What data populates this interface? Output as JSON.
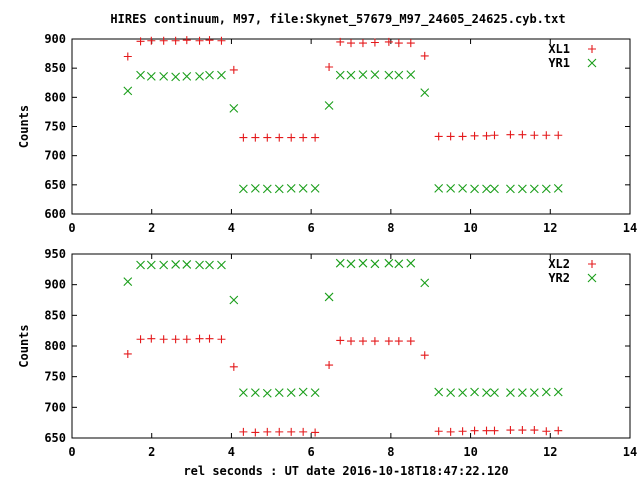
{
  "title": "HIRES continuum, M97, file:Skynet_57679_M97_24605_24625.cyb.txt",
  "xlabel": "rel seconds : UT date 2016-10-18T18:47:22.120",
  "chart_data": [
    {
      "type": "scatter",
      "ylabel": "Counts",
      "xlim": [
        0,
        14
      ],
      "ylim": [
        600,
        900
      ],
      "xticks": [
        "0",
        "2",
        "4",
        "6",
        "8",
        "10",
        "12",
        "14"
      ],
      "yticks": [
        "600",
        "650",
        "700",
        "750",
        "800",
        "850",
        "900"
      ],
      "legend": "top-right",
      "series": [
        {
          "name": "XL1",
          "marker": "plus",
          "color": "#e41a1c",
          "x": [
            1.4,
            1.72,
            1.99,
            2.3,
            2.6,
            2.88,
            3.2,
            3.45,
            3.75,
            4.06,
            4.3,
            4.6,
            4.9,
            5.2,
            5.5,
            5.8,
            6.1,
            6.45,
            6.73,
            7.0,
            7.3,
            7.6,
            7.95,
            8.2,
            8.5,
            8.85,
            9.2,
            9.5,
            9.8,
            10.1,
            10.4,
            10.6,
            11.0,
            11.3,
            11.6,
            11.9,
            12.2
          ],
          "y": [
            870,
            896,
            897,
            897,
            897,
            898,
            897,
            898,
            897,
            847,
            731,
            731,
            731,
            731,
            731,
            731,
            731,
            852,
            895,
            893,
            893,
            894,
            895,
            893,
            893,
            871,
            733,
            733,
            733,
            734,
            734,
            735,
            736,
            736,
            735,
            735,
            735
          ]
        },
        {
          "name": "YR1",
          "marker": "cross",
          "color": "#1a9e1a",
          "x": [
            1.4,
            1.72,
            1.99,
            2.3,
            2.6,
            2.88,
            3.2,
            3.45,
            3.75,
            4.06,
            4.3,
            4.6,
            4.9,
            5.2,
            5.5,
            5.8,
            6.1,
            6.45,
            6.73,
            7.0,
            7.3,
            7.6,
            7.95,
            8.2,
            8.5,
            8.85,
            9.2,
            9.5,
            9.8,
            10.1,
            10.4,
            10.6,
            11.0,
            11.3,
            11.6,
            11.9,
            12.2
          ],
          "y": [
            811,
            838,
            836,
            836,
            835,
            836,
            836,
            838,
            838,
            781,
            643,
            644,
            643,
            643,
            644,
            644,
            644,
            786,
            838,
            838,
            839,
            839,
            838,
            838,
            839,
            808,
            644,
            644,
            644,
            643,
            643,
            643,
            643,
            643,
            643,
            643,
            644
          ]
        }
      ]
    },
    {
      "type": "scatter",
      "ylabel": "Counts",
      "xlim": [
        0,
        14
      ],
      "ylim": [
        650,
        950
      ],
      "xticks": [
        "0",
        "2",
        "4",
        "6",
        "8",
        "10",
        "12",
        "14"
      ],
      "yticks": [
        "650",
        "700",
        "750",
        "800",
        "850",
        "900",
        "950"
      ],
      "legend": "top-right",
      "series": [
        {
          "name": "XL2",
          "marker": "plus",
          "color": "#e41a1c",
          "x": [
            1.4,
            1.72,
            1.99,
            2.3,
            2.6,
            2.88,
            3.2,
            3.45,
            3.75,
            4.06,
            4.3,
            4.6,
            4.9,
            5.2,
            5.5,
            5.8,
            6.1,
            6.45,
            6.73,
            7.0,
            7.3,
            7.6,
            7.95,
            8.2,
            8.5,
            8.85,
            9.2,
            9.5,
            9.8,
            10.1,
            10.4,
            10.6,
            11.0,
            11.3,
            11.6,
            11.9,
            12.2
          ],
          "y": [
            787,
            811,
            812,
            811,
            811,
            811,
            812,
            812,
            811,
            766,
            660,
            659,
            660,
            660,
            660,
            660,
            659,
            769,
            809,
            808,
            808,
            808,
            808,
            808,
            808,
            785,
            661,
            660,
            661,
            662,
            662,
            662,
            663,
            663,
            663,
            661,
            662
          ]
        },
        {
          "name": "YR2",
          "marker": "cross",
          "color": "#1a9e1a",
          "x": [
            1.4,
            1.72,
            1.99,
            2.3,
            2.6,
            2.88,
            3.2,
            3.45,
            3.75,
            4.06,
            4.3,
            4.6,
            4.9,
            5.2,
            5.5,
            5.8,
            6.1,
            6.45,
            6.73,
            7.0,
            7.3,
            7.6,
            7.95,
            8.2,
            8.5,
            8.85,
            9.2,
            9.5,
            9.8,
            10.1,
            10.4,
            10.6,
            11.0,
            11.3,
            11.6,
            11.9,
            12.2
          ],
          "y": [
            905,
            932,
            932,
            932,
            933,
            933,
            932,
            932,
            932,
            875,
            724,
            724,
            723,
            724,
            724,
            725,
            724,
            880,
            935,
            934,
            935,
            934,
            935,
            934,
            935,
            903,
            725,
            724,
            724,
            725,
            724,
            724,
            724,
            724,
            724,
            725,
            725
          ]
        }
      ]
    }
  ]
}
